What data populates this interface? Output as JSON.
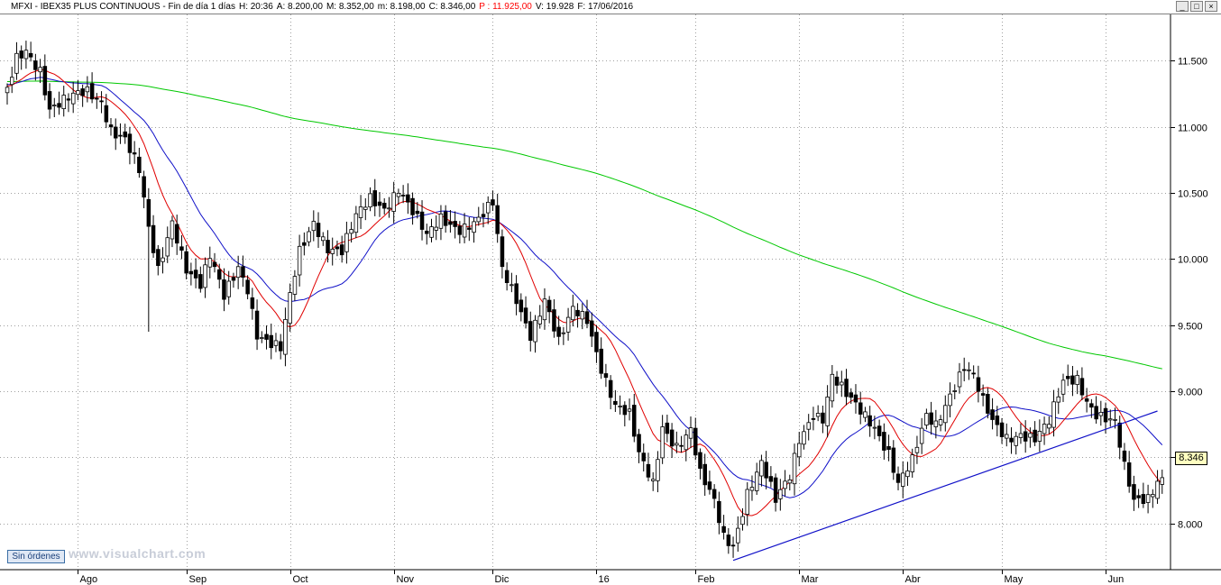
{
  "window": {
    "title_parts": [
      {
        "text": "MFXI - IBEX35 PLUS CONTINUOUS - Fin de día 1 días"
      },
      {
        "text": "H: 20:36"
      },
      {
        "text": "A: 8.200,00"
      },
      {
        "text": "M: 8.352,00"
      },
      {
        "text": "m: 8.198,00"
      },
      {
        "text": "C: 8.346,00"
      },
      {
        "text": "P : 11.925,00",
        "highlight": true
      },
      {
        "text": "V: 19.928"
      },
      {
        "text": "F: 17/06/2016"
      }
    ],
    "controls": [
      "_",
      "□",
      "×"
    ]
  },
  "orders_button": "Sin órdenes",
  "watermark": "www.visualchart.com",
  "last_price_label": "8.346",
  "colors": {
    "sma_short": "#e00000",
    "sma_mid": "#1010c8",
    "sma_long": "#00c800",
    "trendline": "#1010c8",
    "candle_up_fill": "#ffffff",
    "candle_down_fill": "#000000",
    "grid": "#a0a0a0"
  },
  "chart_data": {
    "type": "candlestick",
    "ylim": [
      7650,
      11850
    ],
    "yticks": [
      {
        "value": 8000,
        "label": "8.000"
      },
      {
        "value": 8500,
        "label": "8.500"
      },
      {
        "value": 9000,
        "label": "9.000"
      },
      {
        "value": 9500,
        "label": "9.500"
      },
      {
        "value": 10000,
        "label": "10.000"
      },
      {
        "value": 10500,
        "label": "10.500"
      },
      {
        "value": 11000,
        "label": "11.000"
      },
      {
        "value": 11500,
        "label": "11.500"
      }
    ],
    "month_labels": [
      {
        "label": "Ago",
        "day": 15
      },
      {
        "label": "Sep",
        "day": 38
      },
      {
        "label": "Oct",
        "day": 60
      },
      {
        "label": "Nov",
        "day": 82
      },
      {
        "label": "Dic",
        "day": 103
      },
      {
        "label": "16",
        "day": 125
      },
      {
        "label": "Feb",
        "day": 146
      },
      {
        "label": "Mar",
        "day": 168
      },
      {
        "label": "Abr",
        "day": 190
      },
      {
        "label": "May",
        "day": 211
      },
      {
        "label": "Jun",
        "day": 233
      }
    ],
    "anchors": [
      [
        0,
        11250
      ],
      [
        2,
        11500
      ],
      [
        4,
        11580
      ],
      [
        7,
        11450
      ],
      [
        9,
        11150
      ],
      [
        13,
        11200
      ],
      [
        17,
        11250
      ],
      [
        20,
        11200
      ],
      [
        22,
        11000
      ],
      [
        25,
        10920
      ],
      [
        28,
        10650
      ],
      [
        30,
        10200
      ],
      [
        32,
        9900
      ],
      [
        35,
        10300
      ],
      [
        38,
        9950
      ],
      [
        41,
        9800
      ],
      [
        43,
        10000
      ],
      [
        46,
        9700
      ],
      [
        49,
        9950
      ],
      [
        51,
        9800
      ],
      [
        53,
        9450
      ],
      [
        56,
        9350
      ],
      [
        58,
        9300
      ],
      [
        60,
        9700
      ],
      [
        62,
        10050
      ],
      [
        65,
        10300
      ],
      [
        68,
        10100
      ],
      [
        71,
        10050
      ],
      [
        74,
        10300
      ],
      [
        77,
        10450
      ],
      [
        80,
        10400
      ],
      [
        83,
        10550
      ],
      [
        86,
        10350
      ],
      [
        89,
        10150
      ],
      [
        92,
        10300
      ],
      [
        96,
        10250
      ],
      [
        100,
        10300
      ],
      [
        103,
        10400
      ],
      [
        105,
        9900
      ],
      [
        108,
        9700
      ],
      [
        111,
        9450
      ],
      [
        114,
        9700
      ],
      [
        117,
        9350
      ],
      [
        120,
        9600
      ],
      [
        123,
        9550
      ],
      [
        126,
        9200
      ],
      [
        129,
        8900
      ],
      [
        132,
        8800
      ],
      [
        134,
        8500
      ],
      [
        137,
        8300
      ],
      [
        139,
        8750
      ],
      [
        142,
        8600
      ],
      [
        145,
        8700
      ],
      [
        147,
        8350
      ],
      [
        150,
        8150
      ],
      [
        152,
        7900
      ],
      [
        154,
        7850
      ],
      [
        157,
        8250
      ],
      [
        160,
        8450
      ],
      [
        163,
        8150
      ],
      [
        166,
        8350
      ],
      [
        168,
        8650
      ],
      [
        171,
        8850
      ],
      [
        173,
        8800
      ],
      [
        175,
        9100
      ],
      [
        178,
        8950
      ],
      [
        181,
        8850
      ],
      [
        184,
        8750
      ],
      [
        187,
        8550
      ],
      [
        189,
        8300
      ],
      [
        192,
        8450
      ],
      [
        195,
        8800
      ],
      [
        197,
        8750
      ],
      [
        200,
        9000
      ],
      [
        203,
        9200
      ],
      [
        205,
        9100
      ],
      [
        207,
        8900
      ],
      [
        209,
        8750
      ],
      [
        212,
        8650
      ],
      [
        215,
        8700
      ],
      [
        218,
        8650
      ],
      [
        221,
        8750
      ],
      [
        224,
        9050
      ],
      [
        227,
        9100
      ],
      [
        229,
        8950
      ],
      [
        231,
        8850
      ],
      [
        233,
        8800
      ],
      [
        235,
        8750
      ],
      [
        237,
        8400
      ],
      [
        239,
        8150
      ],
      [
        242,
        8200
      ],
      [
        244,
        8346
      ]
    ],
    "wicks": {
      "30": 9450,
      "31": 10100,
      "32": 9900
    }
  }
}
